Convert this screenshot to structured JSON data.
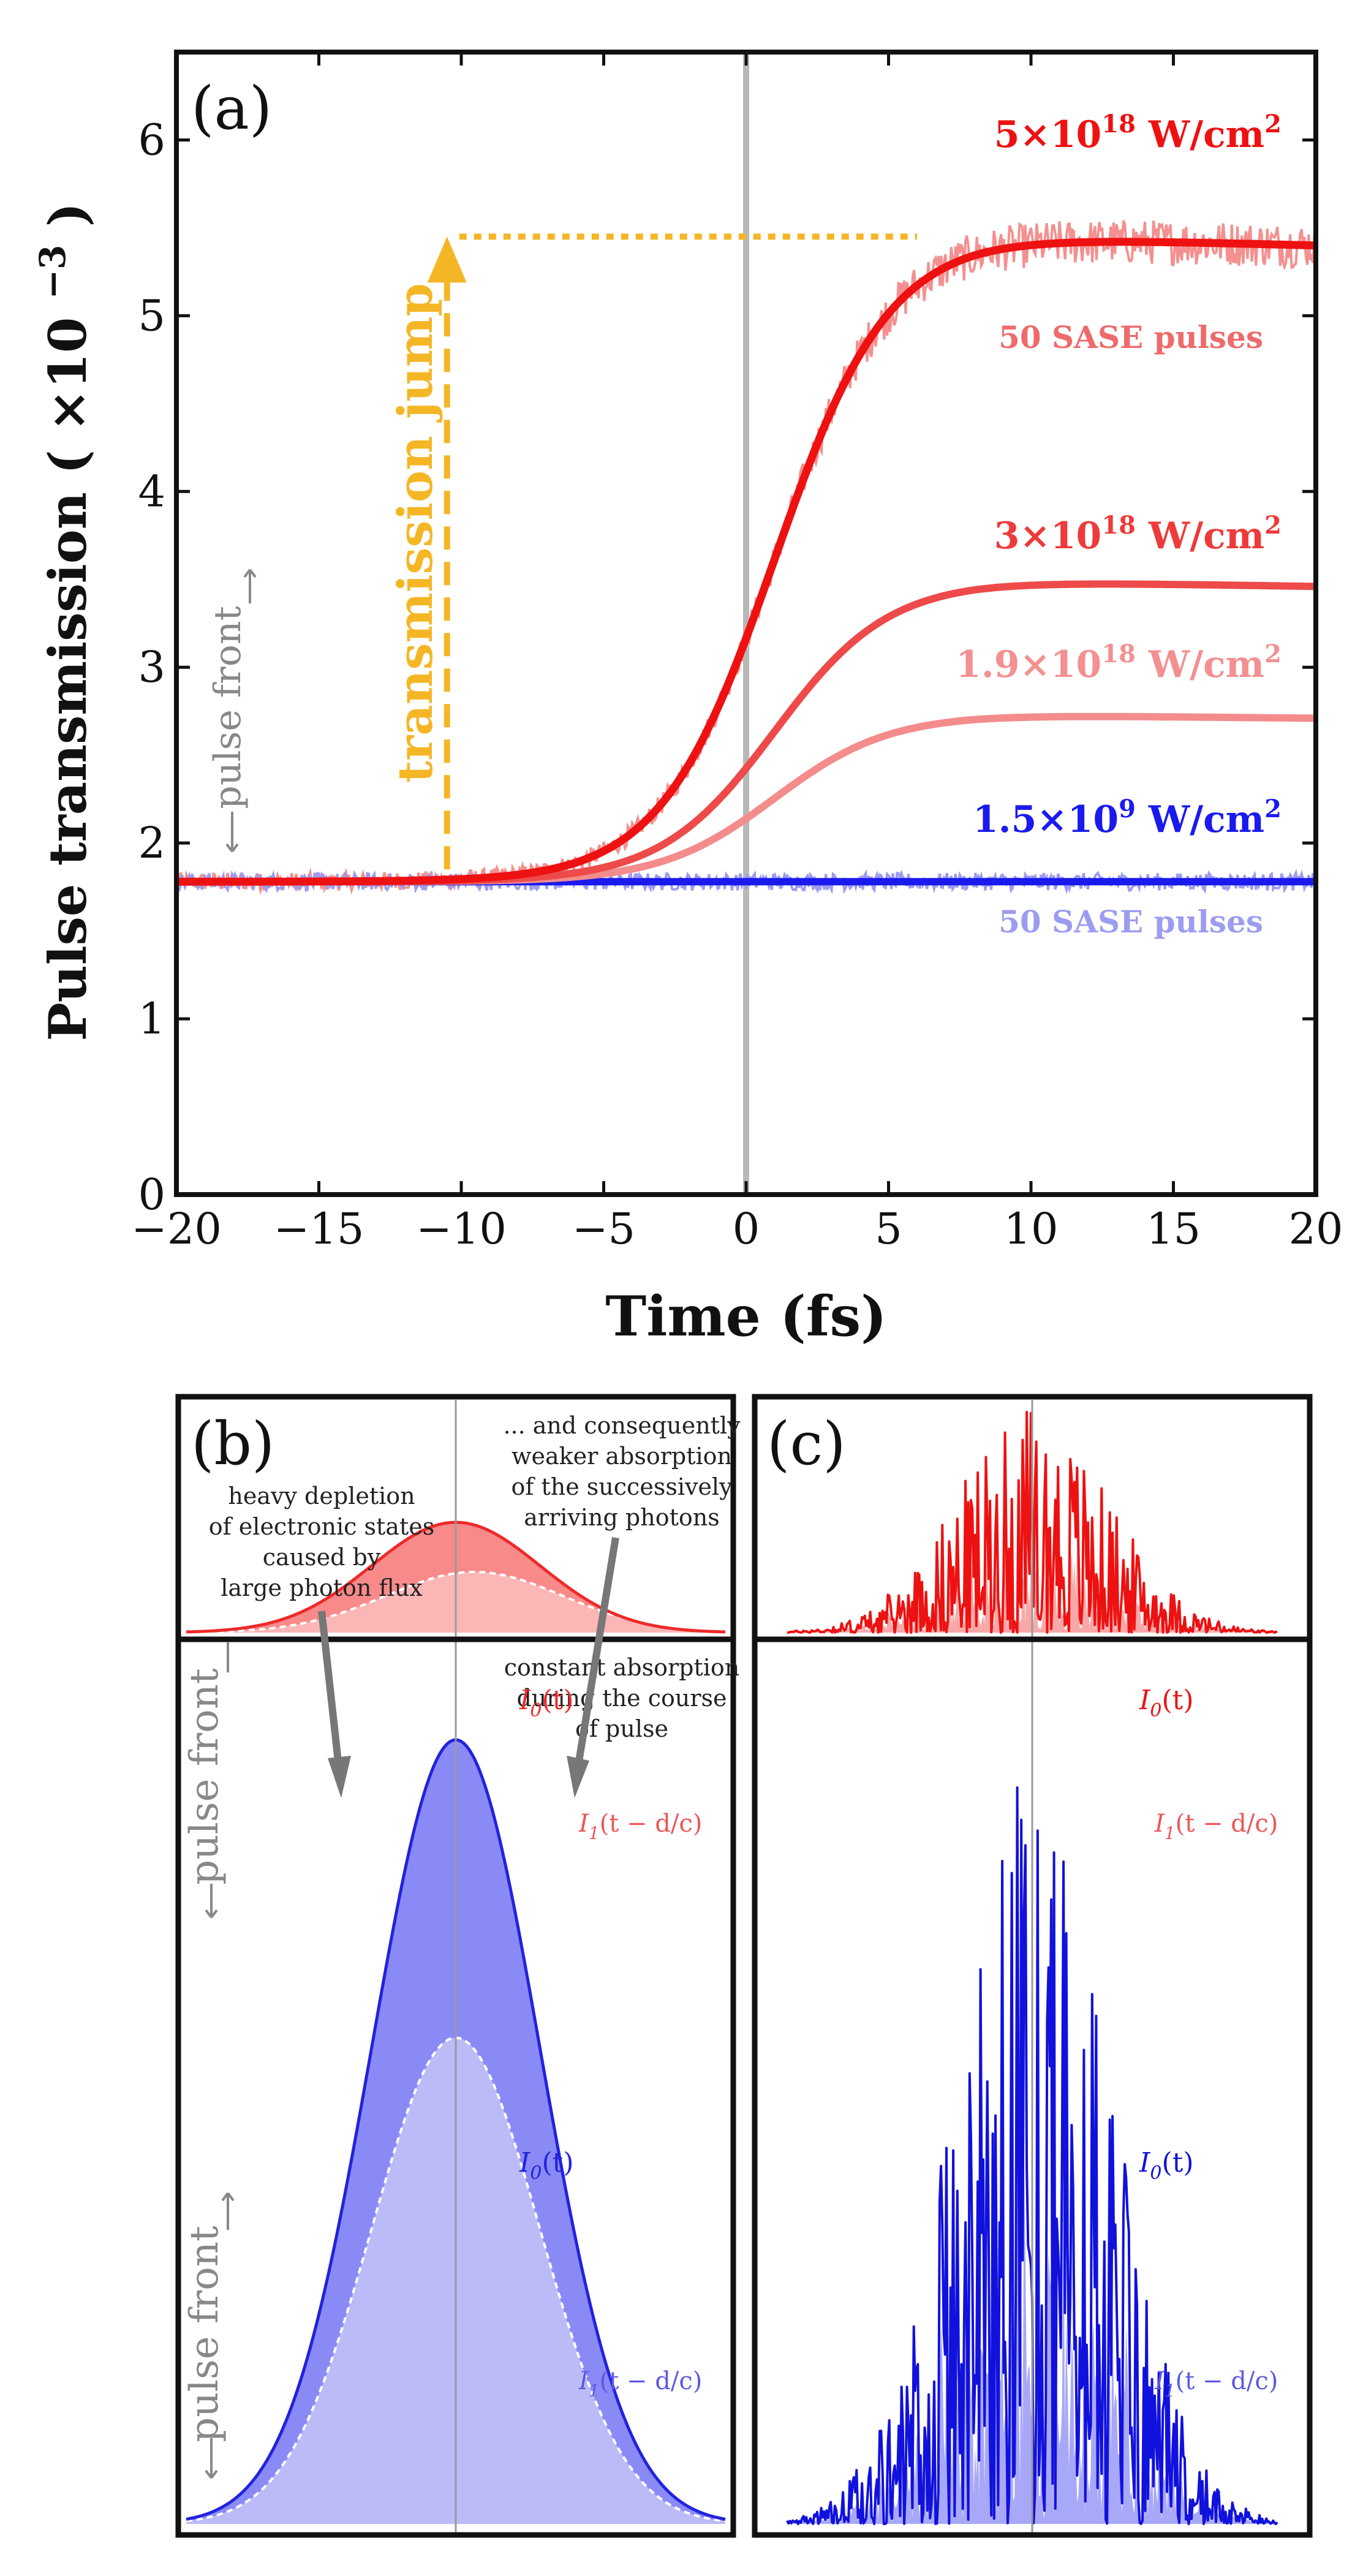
{
  "chart_data": [
    {
      "type": "line",
      "panel_label": "(a)",
      "xlabel": "Time (fs)",
      "ylabel_main": "Pulse transmission",
      "ylabel_unit": "( ×10",
      "ylabel_exp": "−3",
      "ylabel_close": " )",
      "xlim": [
        -20,
        20
      ],
      "ylim": [
        0,
        6.5
      ],
      "x_ticks": [
        -20,
        -15,
        -10,
        -5,
        0,
        5,
        10,
        15,
        20
      ],
      "x_tick_labels": [
        "−20",
        "−15",
        "−10",
        "−5",
        "0",
        "5",
        "10",
        "15",
        "20"
      ],
      "y_ticks": [
        0,
        1,
        2,
        3,
        4,
        5,
        6
      ],
      "y_tick_labels": [
        "0",
        "1",
        "2",
        "3",
        "4",
        "5",
        "6"
      ],
      "vertical_line_x": 0,
      "series": [
        {
          "name": "5×10^18 W/cm^2",
          "color": "#ee1111",
          "baseline": 1.78,
          "plateau": 5.45,
          "end": 5.4,
          "center": 1.0,
          "width": 2.0
        },
        {
          "name": "3×10^18 W/cm^2",
          "color": "#ee4a4a",
          "baseline": 1.78,
          "plateau": 3.49,
          "end": 3.46,
          "center": 1.0,
          "width": 2.0
        },
        {
          "name": "1.9×10^18 W/cm^2",
          "color": "#f48c8c",
          "baseline": 1.78,
          "plateau": 2.73,
          "end": 2.71,
          "center": 1.0,
          "width": 2.0
        },
        {
          "name": "1.5×10^9 W/cm^2",
          "color": "#1a1aee",
          "baseline": 1.78,
          "plateau": 1.78,
          "end": 1.78,
          "center": 0,
          "width": 2.0
        }
      ],
      "sase_noise": [
        {
          "of_series": "5×10^18 W/cm^2",
          "amplitude": 0.13,
          "color": "#f49090"
        },
        {
          "of_series": "1.5×10^9 W/cm^2",
          "amplitude": 0.05,
          "color": "#9c9cf0"
        }
      ],
      "annotations": {
        "jump_label": "transmission jump",
        "jump_color": "#f5b626",
        "jump_from": [
          -10.5,
          1.78
        ],
        "jump_to": [
          -10.5,
          5.45
        ],
        "jump_dotted_end_x": 6,
        "pulse_front": "pulse front",
        "series_labels": [
          {
            "base": "5×10",
            "sup": "18",
            "unit": " W/cm",
            "sup2": "2",
            "color": "#ee1111"
          },
          {
            "text": "50 SASE pulses",
            "color": "#ef6a6a"
          },
          {
            "base": "3×10",
            "sup": "18",
            "unit": " W/cm",
            "sup2": "2",
            "color": "#ee3a3a"
          },
          {
            "base": "1.9×10",
            "sup": "18",
            "unit": " W/cm",
            "sup2": "2",
            "color": "#f39090"
          },
          {
            "base": "1.5×10",
            "sup": "9",
            "unit": " W/cm",
            "sup2": "2",
            "color": "#1a1aee"
          },
          {
            "text": "50 SASE pulses",
            "color": "#9c9cf0"
          }
        ]
      }
    },
    {
      "type": "area",
      "panel_label": "(b)",
      "description_top": [
        "heavy depletion",
        "of electronic states",
        "caused by",
        "large photon flux"
      ],
      "description_top_right": [
        "... and consequently",
        "weaker absorption",
        "of the successively",
        "arriving photons"
      ],
      "description_bottom": [
        "constant absorption",
        "during the course",
        "of pulse"
      ],
      "pulse_front": "pulse front",
      "top_series": [
        {
          "name": "I0(t)",
          "label_main": "I",
          "label_sub": "0",
          "label_arg": "(t)",
          "peak": 1.0,
          "center": 0,
          "sigma": 1,
          "color": "#ee2a2a",
          "fill": "#f88a8a"
        },
        {
          "name": "I1(t − d/c)",
          "label_main": "I",
          "label_sub": "1",
          "label_arg": "(t − d/c)",
          "peak": 0.55,
          "center": 0.55,
          "sigma": 1.05,
          "color": "#ffffff",
          "fill": "#fbb6b6"
        }
      ],
      "bottom_series": [
        {
          "name": "I0(t)",
          "label_main": "I",
          "label_sub": "0",
          "label_arg": "(t)",
          "peak": 1.0,
          "center": 0,
          "sigma": 1,
          "color": "#2222dd",
          "fill": "#8a8af6"
        },
        {
          "name": "I1(t − d/c)",
          "label_main": "I",
          "label_sub": "1",
          "label_arg": "(t − d/c)",
          "peak": 0.62,
          "center": 0,
          "sigma": 1,
          "color": "#ffffff",
          "fill": "#bbbbf8"
        }
      ]
    },
    {
      "type": "area",
      "panel_label": "(c)",
      "top_series": [
        {
          "name": "I0(t)",
          "label_main": "I",
          "label_sub": "0",
          "label_arg": "(t)",
          "color": "#ee1111",
          "fill": "#f8a8a8"
        },
        {
          "name": "I1(t − d/c)",
          "label_main": "I",
          "label_sub": "1",
          "label_arg": "(t − d/c)",
          "color": "#ee1111",
          "fill": "#f8a8a8"
        }
      ],
      "bottom_series": [
        {
          "name": "I0(t)",
          "label_main": "I",
          "label_sub": "0",
          "label_arg": "(t)",
          "color": "#1111dd",
          "fill": "#a8a8f8"
        },
        {
          "name": "I1(t − d/c)",
          "label_main": "I",
          "label_sub": "1",
          "label_arg": "(t − d/c)",
          "color": "#1111dd",
          "fill": "#a8a8f8"
        }
      ],
      "spike_envelope": "gaussian",
      "spike_count": 120
    }
  ]
}
